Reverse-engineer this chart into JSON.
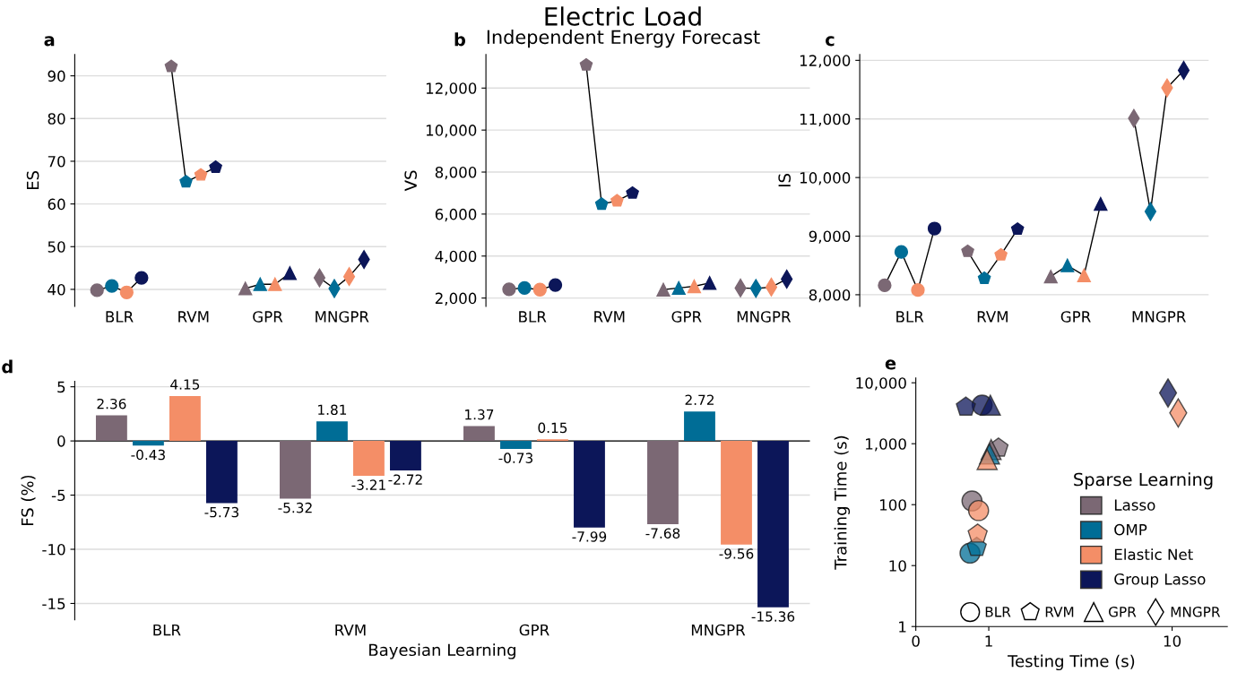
{
  "chart_data": [
    {
      "type": "scatter",
      "annotations": [
        "a"
      ],
      "ylabel": "ES",
      "categories": [
        "BLR",
        "RVM",
        "GPR",
        "MNGPR"
      ],
      "marker": [
        "circle",
        "pentagon",
        "triangle",
        "diamond"
      ],
      "ylim": [
        36,
        95
      ],
      "yticks": [
        40,
        50,
        60,
        70,
        80,
        90
      ],
      "grid": "y",
      "series": [
        {
          "color": "#7b6874",
          "values": [
            39.8,
            92.2,
            40.2,
            42.7
          ]
        },
        {
          "color": "#006d96",
          "values": [
            40.8,
            65.2,
            41.2,
            40.2
          ]
        },
        {
          "color": "#f48e67",
          "values": [
            39.3,
            66.8,
            41.2,
            43.0
          ]
        },
        {
          "color": "#0c1659",
          "values": [
            42.7,
            68.6,
            43.8,
            47.0
          ]
        }
      ]
    },
    {
      "type": "scatter",
      "title": "Electric Load",
      "subtitle": "Independent Energy Forecast",
      "annotations": [
        "b"
      ],
      "ylabel": "VS",
      "categories": [
        "BLR",
        "RVM",
        "GPR",
        "MNGPR"
      ],
      "marker": [
        "circle",
        "pentagon",
        "triangle",
        "diamond"
      ],
      "ylim": [
        1600,
        13600
      ],
      "yticks": [
        {
          "value": 2000,
          "label": "2,000"
        },
        {
          "value": 4000,
          "label": "4,000"
        },
        {
          "value": 6000,
          "label": "6,000"
        },
        {
          "value": 8000,
          "label": "8,000"
        },
        {
          "value": 10000,
          "label": "10,000"
        },
        {
          "value": 12000,
          "label": "12,000"
        }
      ],
      "grid": "y",
      "series": [
        {
          "color": "#7b6874",
          "values": [
            2420,
            13100,
            2400,
            2480
          ]
        },
        {
          "color": "#006d96",
          "values": [
            2480,
            6470,
            2480,
            2460
          ]
        },
        {
          "color": "#f48e67",
          "values": [
            2400,
            6630,
            2560,
            2520
          ]
        },
        {
          "color": "#0c1659",
          "values": [
            2620,
            7000,
            2720,
            2900
          ]
        }
      ]
    },
    {
      "type": "scatter",
      "annotations": [
        "c"
      ],
      "ylabel": "IS",
      "categories": [
        "BLR",
        "RVM",
        "GPR",
        "MNGPR"
      ],
      "marker": [
        "circle",
        "pentagon",
        "triangle",
        "diamond"
      ],
      "ylim": [
        7800,
        12100
      ],
      "yticks": [
        {
          "value": 8000,
          "label": "8,000"
        },
        {
          "value": 9000,
          "label": "9,000"
        },
        {
          "value": 10000,
          "label": "10,000"
        },
        {
          "value": 11000,
          "label": "11,000"
        },
        {
          "value": 12000,
          "label": "12,000"
        }
      ],
      "grid": "y",
      "series": [
        {
          "color": "#7b6874",
          "values": [
            8160,
            8740,
            8310,
            11010
          ]
        },
        {
          "color": "#006d96",
          "values": [
            8730,
            8280,
            8500,
            9420
          ]
        },
        {
          "color": "#f48e67",
          "values": [
            8080,
            8680,
            8330,
            11530
          ]
        },
        {
          "color": "#0c1659",
          "values": [
            9130,
            9120,
            9550,
            11830
          ]
        }
      ]
    },
    {
      "type": "bar",
      "annotations": [
        "d"
      ],
      "xlabel": "Bayesian Learning",
      "ylabel": "FS (%)",
      "categories": [
        "BLR",
        "RVM",
        "GPR",
        "MNGPR"
      ],
      "ylim": [
        -16.5,
        5.5
      ],
      "yticks": [
        5,
        0,
        -5,
        -10,
        -15
      ],
      "grid": "y",
      "data_labels": true,
      "ref_lines": [
        {
          "axis": "y",
          "value": 0,
          "color": "#000000"
        }
      ],
      "series": [
        {
          "color": "#7b6874",
          "values": [
            2.36,
            -5.32,
            1.37,
            -7.68
          ]
        },
        {
          "color": "#006d96",
          "values": [
            -0.43,
            1.81,
            -0.73,
            2.72
          ]
        },
        {
          "color": "#f48e67",
          "values": [
            4.15,
            -3.21,
            0.15,
            -9.56
          ]
        },
        {
          "color": "#0c1659",
          "values": [
            -5.73,
            -2.72,
            -7.99,
            -15.36
          ]
        }
      ]
    },
    {
      "type": "scatter",
      "annotations": [
        "e",
        "BLR",
        "RVM",
        "GPR",
        "MNGPR"
      ],
      "xlabel": "Testing Time (s)",
      "ylabel": "Training Time (s)",
      "log": "xy",
      "marker": [
        "circle",
        "pentagon",
        "triangle",
        "diamond"
      ],
      "legend": "bottom right",
      "legend_title": "Sparse Learning",
      "grid": false,
      "xlim": [
        0.4,
        20
      ],
      "xticks": [
        {
          "value": 0.4,
          "label": "0"
        },
        1,
        10
      ],
      "ylim": [
        1,
        12000
      ],
      "yticks": [
        1,
        10,
        100,
        {
          "value": 1000,
          "label": "1,000"
        },
        {
          "value": 10000,
          "label": "10,000"
        }
      ],
      "series": [
        {
          "name": "Lasso",
          "color": "#7b6874",
          "x": [
            0.81,
            1.13,
            1.03,
            null
          ],
          "values": [
            115,
            850,
            800,
            null
          ]
        },
        {
          "name": "OMP",
          "color": "#006d96",
          "x": [
            0.79,
            0.86,
            1.01,
            null
          ],
          "values": [
            16,
            20,
            680,
            null
          ]
        },
        {
          "name": "Elastic Net",
          "color": "#f48e67",
          "x": [
            0.88,
            0.87,
            0.98,
            10.8
          ],
          "values": [
            80,
            33,
            550,
            3200
          ]
        },
        {
          "name": "Group Lasso",
          "color": "#0c1659",
          "x": [
            0.92,
            0.75,
            1.02,
            9.5
          ],
          "values": [
            4300,
            4000,
            4300,
            6800
          ]
        }
      ]
    }
  ]
}
